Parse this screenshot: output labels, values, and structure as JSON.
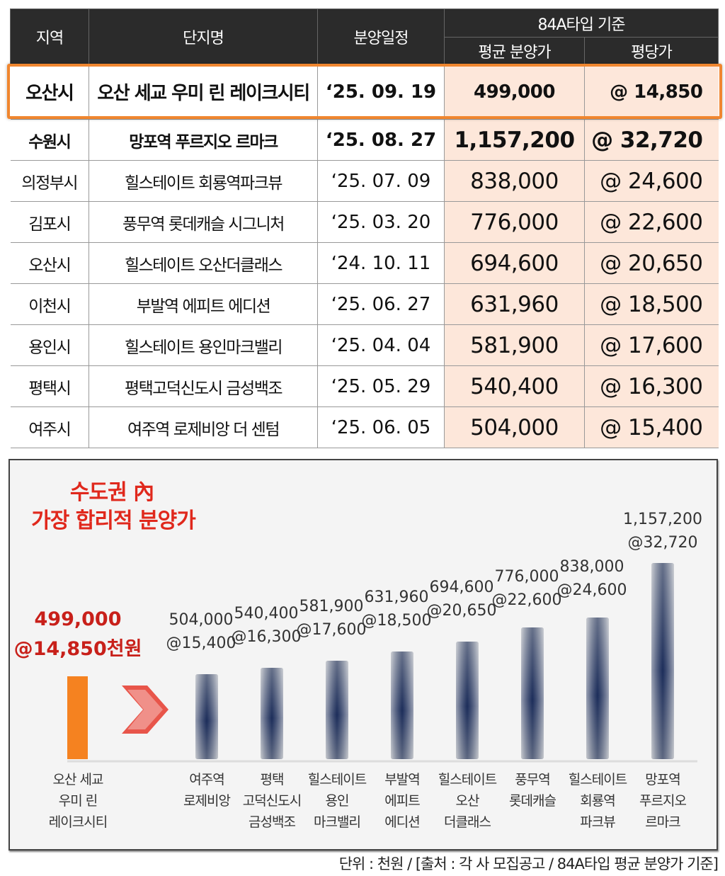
{
  "table": {
    "headers": {
      "region": "지역",
      "complex": "단지명",
      "schedule": "분양일정",
      "group": "84A타입 기준",
      "avg_price": "평균 분양가",
      "per_pyeong": "평당가"
    },
    "rows": [
      {
        "region": "오산시",
        "complex": "오산 세교 우미 린 레이크시티",
        "schedule": "‘25. 09. 19",
        "avg_price": "499,000",
        "per_pyeong": "@ 14,850"
      },
      {
        "region": "수원시",
        "complex": "망포역 푸르지오 르마크",
        "schedule": "‘25. 08. 27",
        "avg_price": "1,157,200",
        "per_pyeong": "@ 32,720"
      },
      {
        "region": "의정부시",
        "complex": "힐스테이트 회룡역파크뷰",
        "schedule": "‘25. 07. 09",
        "avg_price": "838,000",
        "per_pyeong": "@ 24,600"
      },
      {
        "region": "김포시",
        "complex": "풍무역 롯데캐슬 시그니처",
        "schedule": "‘25. 03. 20",
        "avg_price": "776,000",
        "per_pyeong": "@ 22,600"
      },
      {
        "region": "오산시",
        "complex": "힐스테이트 오산더클래스",
        "schedule": "‘24. 10. 11",
        "avg_price": "694,600",
        "per_pyeong": "@ 20,650"
      },
      {
        "region": "이천시",
        "complex": "부발역 에피트 에디션",
        "schedule": "‘25. 06. 27",
        "avg_price": "631,960",
        "per_pyeong": "@ 18,500"
      },
      {
        "region": "용인시",
        "complex": "힐스테이트 용인마크밸리",
        "schedule": "‘25. 04. 04",
        "avg_price": "581,900",
        "per_pyeong": "@ 17,600"
      },
      {
        "region": "평택시",
        "complex": "평택고덕신도시 금성백조",
        "schedule": "‘25. 05. 29",
        "avg_price": "540,400",
        "per_pyeong": "@ 16,300"
      },
      {
        "region": "여주시",
        "complex": "여주역 로제비앙 더 센텀",
        "schedule": "‘25. 06. 05",
        "avg_price": "504,000",
        "per_pyeong": "@ 15,400"
      }
    ]
  },
  "chart_data": {
    "type": "bar",
    "title_lines": [
      "수도권 內",
      "가장 합리적 분양가"
    ],
    "highlight": {
      "label_lines": [
        "오산 세교",
        "우미 린",
        "레이크시티"
      ],
      "value": 499000,
      "value_label": "499,000",
      "per_label": "@14,850천원",
      "color": "#f58220"
    },
    "categories": [
      [
        "여주역",
        "로제비앙"
      ],
      [
        "평택",
        "고덕신도시",
        "금성백조"
      ],
      [
        "힐스테이트",
        "용인",
        "마크밸리"
      ],
      [
        "부발역",
        "에피트",
        "에디션"
      ],
      [
        "힐스테이트",
        "오산",
        "더클래스"
      ],
      [
        "풍무역",
        "롯데캐슬"
      ],
      [
        "힐스테이트",
        "회룡역",
        "파크뷰"
      ],
      [
        "망포역",
        "푸르지오",
        "르마크"
      ]
    ],
    "values": [
      504000,
      540400,
      581900,
      631960,
      694600,
      776000,
      838000,
      1157200
    ],
    "value_labels": [
      "504,000",
      "540,400",
      "581,900",
      "631,960",
      "694,600",
      "776,000",
      "838,000",
      "1,157,200"
    ],
    "per_labels": [
      "@15,400",
      "@16,300",
      "@17,600",
      "@18,500",
      "@20,650",
      "@22,600",
      "@24,600",
      "@32,720"
    ],
    "colors": {
      "bar_dark": "#1c2d5a",
      "bar_light": "#f0f0f0",
      "arrow": "#e8554a",
      "title": "#e0281c"
    }
  },
  "footnote": "단위 : 천원 / [출처 : 각  사 모집공고 / 84A타입 평균 분양가 기준]"
}
